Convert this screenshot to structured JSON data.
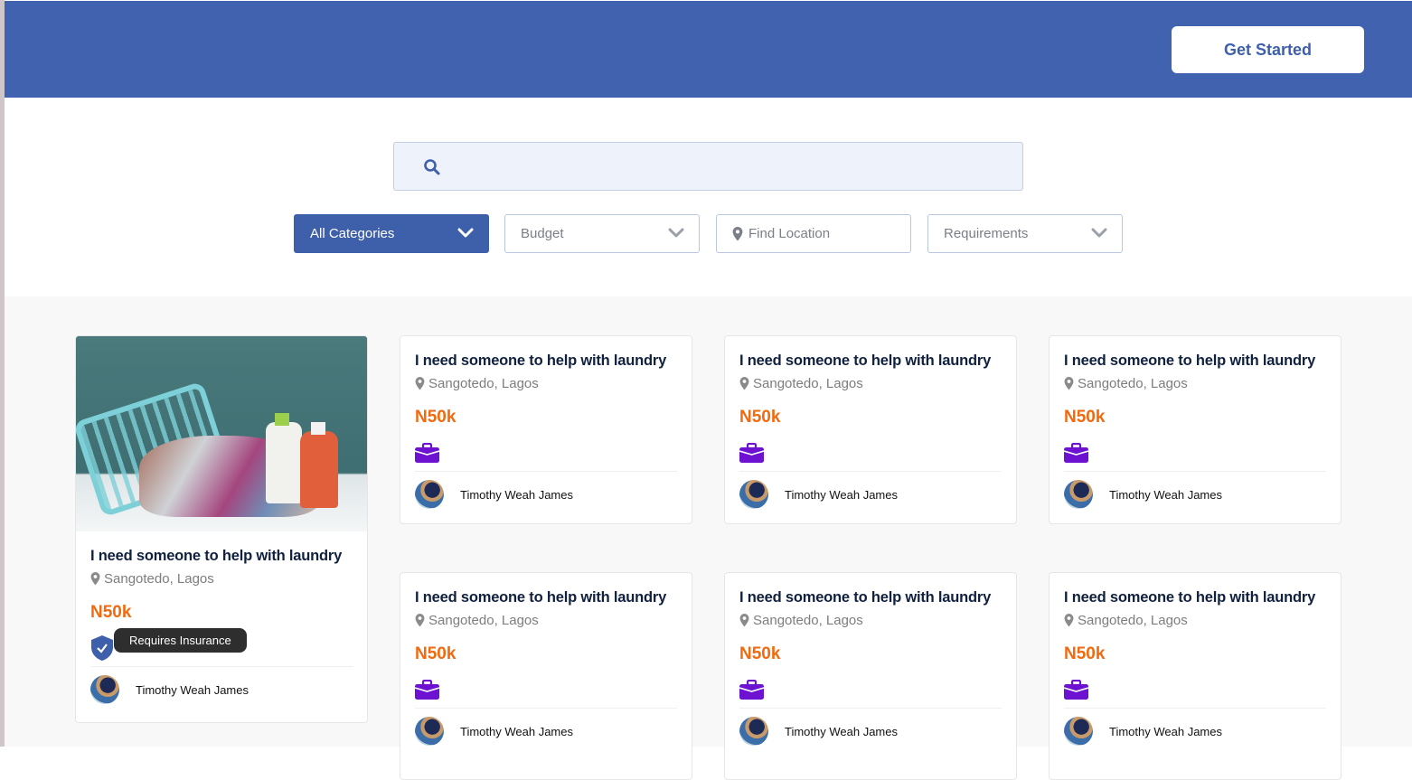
{
  "header": {
    "cta_label": "Get Started",
    "brand_color": "#4162ae"
  },
  "search": {
    "placeholder": "",
    "icon": "search-icon"
  },
  "filters": [
    {
      "label": "All Categories",
      "type": "dropdown",
      "active": true
    },
    {
      "label": "Budget",
      "type": "dropdown",
      "active": false
    },
    {
      "label": "Find Location",
      "type": "location",
      "active": false
    },
    {
      "label": "Requirements",
      "type": "dropdown",
      "active": false
    }
  ],
  "featured": {
    "title": "I need someone to help with laundry",
    "location": "Sangotedo, Lagos",
    "price": "N50k",
    "badge_icon": "shield-check-icon",
    "tooltip": "Requires Insurance",
    "user": "Timothy Weah James"
  },
  "jobs": [
    {
      "title": "I need someone to help with laundry",
      "location": "Sangotedo, Lagos",
      "price": "N50k",
      "icon": "briefcase-icon",
      "user": "Timothy Weah James"
    },
    {
      "title": "I need someone to help with laundry",
      "location": "Sangotedo, Lagos",
      "price": "N50k",
      "icon": "briefcase-icon",
      "user": "Timothy Weah James"
    },
    {
      "title": "I need someone to help with laundry",
      "location": "Sangotedo, Lagos",
      "price": "N50k",
      "icon": "briefcase-icon",
      "user": "Timothy Weah James"
    },
    {
      "title": "I need someone to help with laundry",
      "location": "Sangotedo, Lagos",
      "price": "N50k",
      "icon": "briefcase-icon",
      "user": "Timothy Weah James"
    },
    {
      "title": "I need someone to help with laundry",
      "location": "Sangotedo, Lagos",
      "price": "N50k",
      "icon": "briefcase-icon",
      "user": "Timothy Weah James"
    },
    {
      "title": "I need someone to help with laundry",
      "location": "Sangotedo, Lagos",
      "price": "N50k",
      "icon": "briefcase-icon",
      "user": "Timothy Weah James"
    }
  ],
  "colors": {
    "price": "#f26a10",
    "briefcase": "#6c12d0",
    "shield": "#3e5fa9"
  }
}
